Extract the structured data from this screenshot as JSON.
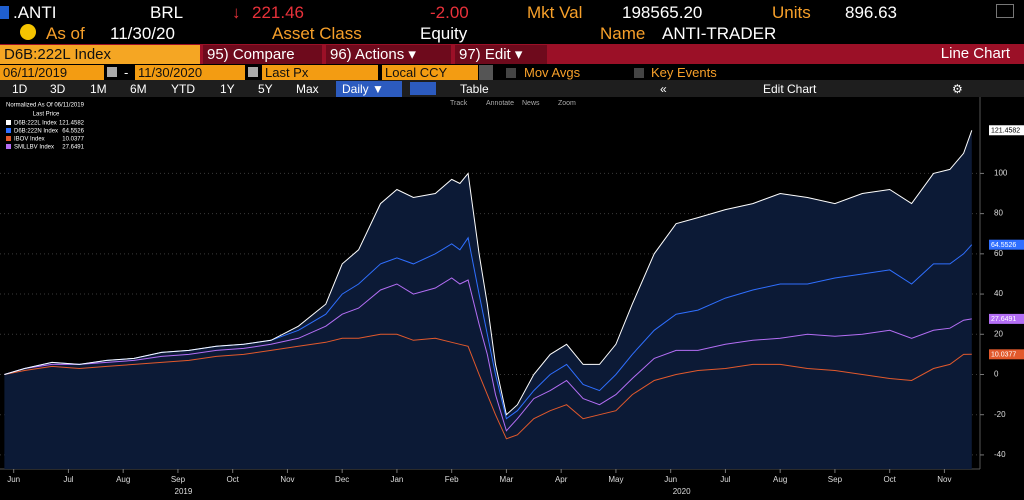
{
  "header": {
    "ticker": ".ANTI",
    "currency": "BRL",
    "price_arrow": "↓",
    "price": "221.46",
    "change": "-2.00",
    "mkt_val_label": "Mkt Val",
    "mkt_val": "198565.20",
    "units_label": "Units",
    "units": "896.63",
    "as_of_label": "As of",
    "as_of": "11/30/20",
    "asset_class_label": "Asset Class",
    "asset_class": "Equity",
    "name_label": "Name",
    "name": "ANTI-TRADER"
  },
  "menu": {
    "security": "D6B:222L Index",
    "compare": "95) Compare",
    "actions": "96) Actions ▾",
    "edit": "97) Edit ▾",
    "view": "Line Chart"
  },
  "controls": {
    "start_date": "06/11/2019",
    "date_separator": "-",
    "end_date": "11/30/2020",
    "field": "Last Px",
    "currency": "Local CCY",
    "mov_avgs": "Mov Avgs",
    "key_events": "Key Events"
  },
  "toolbar": {
    "periods": [
      "1D",
      "3D",
      "1M",
      "6M",
      "YTD",
      "1Y",
      "5Y",
      "Max"
    ],
    "frequency": "Daily ▼",
    "table": "Table",
    "edit_chart": "Edit Chart"
  },
  "chart_tools": [
    "Track",
    "Annotate",
    "News",
    "Zoom"
  ],
  "chart_data": {
    "type": "line",
    "legend_title": "Normalized As Of 06/11/2019",
    "legend_subtitle": "Last Price",
    "grid": true,
    "area_color": "#0c1a36",
    "x": [
      0.33,
      0.7,
      1.2,
      1.7,
      2.2,
      2.7,
      3.2,
      3.7,
      4.2,
      4.7,
      5.2,
      5.7,
      6.2,
      6.5,
      6.8,
      7.2,
      7.5,
      7.8,
      8.2,
      8.5,
      8.65,
      8.8,
      9.0,
      9.15,
      9.3,
      9.5,
      9.7,
      10.0,
      10.3,
      10.6,
      10.9,
      11.2,
      11.5,
      11.8,
      12.2,
      12.6,
      13.0,
      13.5,
      14.0,
      14.5,
      15.0,
      15.5,
      16.0,
      16.5,
      16.9,
      17.3,
      17.6,
      17.85,
      18.0
    ],
    "xlim": [
      0.25,
      18.15
    ],
    "xticks": [
      {
        "value": 0.5,
        "label": "Jun"
      },
      {
        "value": 1.5,
        "label": "Jul"
      },
      {
        "value": 2.5,
        "label": "Aug"
      },
      {
        "value": 3.5,
        "label": "Sep"
      },
      {
        "value": 4.5,
        "label": "Oct"
      },
      {
        "value": 5.5,
        "label": "Nov"
      },
      {
        "value": 6.5,
        "label": "Dec"
      },
      {
        "value": 7.5,
        "label": "Jan"
      },
      {
        "value": 8.5,
        "label": "Feb"
      },
      {
        "value": 9.5,
        "label": "Mar"
      },
      {
        "value": 10.5,
        "label": "Apr"
      },
      {
        "value": 11.5,
        "label": "May"
      },
      {
        "value": 12.5,
        "label": "Jun"
      },
      {
        "value": 13.5,
        "label": "Jul"
      },
      {
        "value": 14.5,
        "label": "Aug"
      },
      {
        "value": 15.5,
        "label": "Sep"
      },
      {
        "value": 16.5,
        "label": "Oct"
      },
      {
        "value": 17.5,
        "label": "Nov"
      }
    ],
    "year_ticks": [
      {
        "value": 3.6,
        "label": "2019"
      },
      {
        "value": 12.7,
        "label": "2020"
      }
    ],
    "ylim": [
      -47,
      138
    ],
    "yticks": [
      -40,
      -20,
      0,
      20,
      40,
      60,
      80,
      100
    ],
    "series": [
      {
        "name": "D6B:222L Index",
        "color": "#ffffff",
        "values": [
          0,
          3,
          6,
          5,
          7,
          8,
          11,
          12,
          14,
          15,
          17,
          24,
          35,
          55,
          62,
          85,
          92,
          88,
          90,
          97,
          95,
          100,
          60,
          35,
          5,
          -20,
          -15,
          0,
          10,
          15,
          5,
          5,
          15,
          35,
          60,
          75,
          78,
          82,
          85,
          90,
          88,
          85,
          90,
          92,
          85,
          100,
          102,
          110,
          121.4582
        ]
      },
      {
        "name": "D6B:222N Index",
        "color": "#2f6fff",
        "values": [
          0,
          3,
          6,
          5,
          7,
          8,
          11,
          12,
          14,
          15,
          17,
          22,
          30,
          40,
          45,
          55,
          58,
          55,
          60,
          65,
          62,
          68,
          40,
          20,
          0,
          -22,
          -18,
          -8,
          0,
          5,
          -5,
          -8,
          0,
          10,
          22,
          30,
          32,
          38,
          42,
          45,
          45,
          48,
          50,
          52,
          45,
          55,
          55,
          60,
          64.5526
        ]
      },
      {
        "name": "IBOV Index",
        "color": "#e2592c",
        "values": [
          0,
          2,
          4,
          3,
          4,
          5,
          6,
          7,
          9,
          10,
          12,
          14,
          16,
          18,
          18,
          20,
          20,
          17,
          18,
          16,
          15,
          14,
          0,
          -10,
          -20,
          -32,
          -30,
          -22,
          -18,
          -15,
          -22,
          -20,
          -18,
          -10,
          -3,
          0,
          2,
          3,
          5,
          5,
          3,
          2,
          0,
          -2,
          -3,
          3,
          5,
          10,
          10.0377
        ]
      },
      {
        "name": "SMLLBV Index",
        "color": "#b46ef5",
        "values": [
          0,
          3,
          5,
          5,
          6,
          7,
          9,
          10,
          12,
          13,
          15,
          18,
          24,
          30,
          33,
          42,
          45,
          40,
          43,
          48,
          45,
          47,
          25,
          10,
          -10,
          -28,
          -22,
          -12,
          -8,
          -3,
          -12,
          -15,
          -10,
          -2,
          8,
          12,
          12,
          15,
          17,
          18,
          20,
          19,
          20,
          22,
          18,
          22,
          23,
          27,
          27.6491
        ]
      }
    ]
  }
}
